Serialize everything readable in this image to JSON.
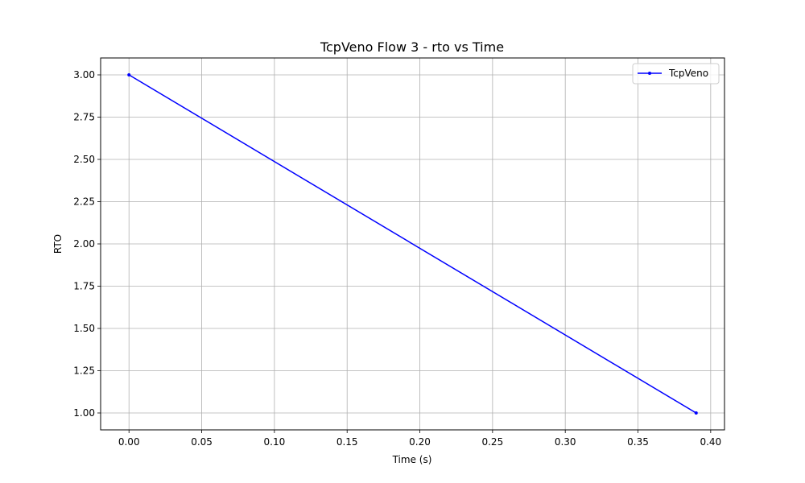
{
  "chart_data": {
    "type": "line",
    "title": "TcpVeno Flow 3 - rto vs Time",
    "xlabel": "Time (s)",
    "ylabel": "RTO",
    "xlim": [
      -0.0195,
      0.4095
    ],
    "ylim": [
      0.9,
      3.1
    ],
    "xticks": [
      0.0,
      0.05,
      0.1,
      0.15,
      0.2,
      0.25,
      0.3,
      0.35,
      0.4
    ],
    "xtick_labels": [
      "0.00",
      "0.05",
      "0.10",
      "0.15",
      "0.20",
      "0.25",
      "0.30",
      "0.35",
      "0.40"
    ],
    "yticks": [
      1.0,
      1.25,
      1.5,
      1.75,
      2.0,
      2.25,
      2.5,
      2.75,
      3.0
    ],
    "ytick_labels": [
      "1.00",
      "1.25",
      "1.50",
      "1.75",
      "2.00",
      "2.25",
      "2.50",
      "2.75",
      "3.00"
    ],
    "grid": true,
    "legend_position": "top-right",
    "series": [
      {
        "name": "TcpVeno",
        "color": "#0000ff",
        "marker": "dot",
        "x": [
          0.0,
          0.39
        ],
        "y": [
          3.0,
          1.0
        ]
      }
    ]
  }
}
